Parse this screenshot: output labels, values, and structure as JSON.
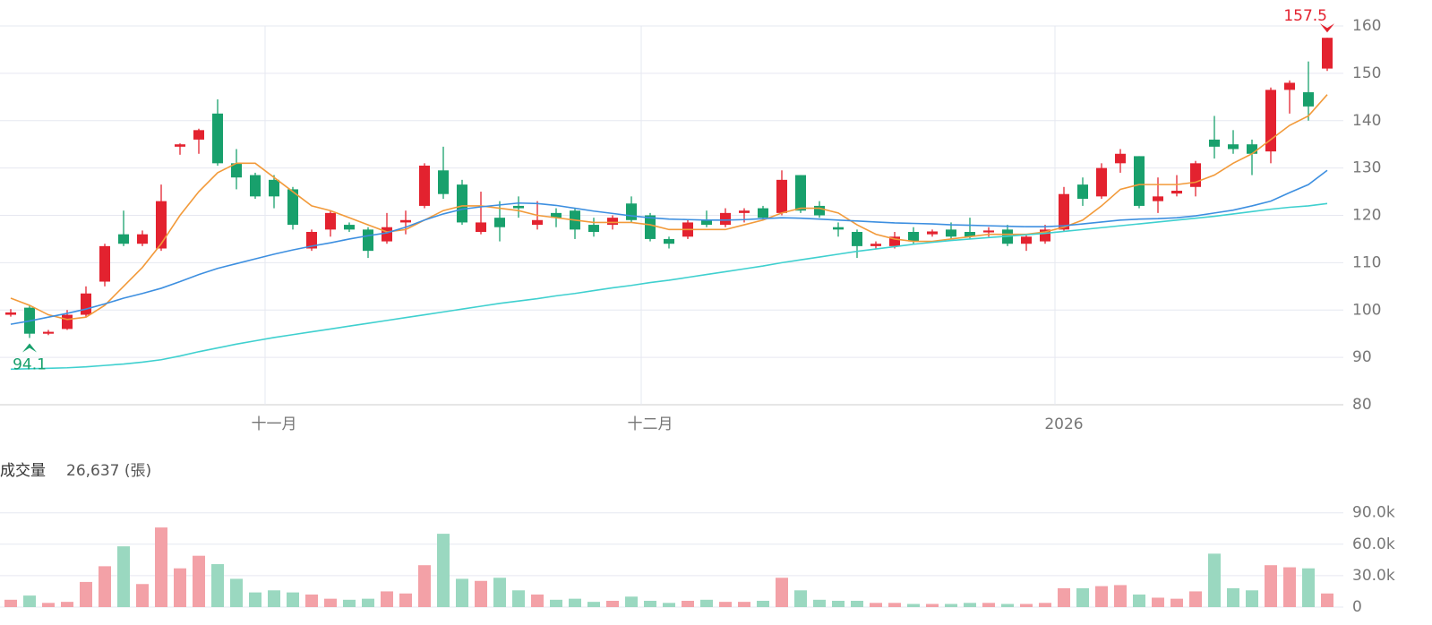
{
  "chart_data": [
    {
      "type": "candlestick",
      "categories": [
        null,
        null,
        null,
        null,
        null,
        null,
        null,
        null,
        null,
        null,
        null,
        null,
        null,
        null,
        "十一月",
        null,
        null,
        null,
        null,
        null,
        null,
        null,
        null,
        null,
        null,
        null,
        null,
        null,
        null,
        null,
        null,
        null,
        null,
        null,
        "十二月",
        null,
        null,
        null,
        null,
        null,
        null,
        null,
        null,
        null,
        null,
        null,
        null,
        null,
        null,
        null,
        null,
        null,
        null,
        null,
        null,
        null,
        "2026",
        null,
        null,
        null,
        null,
        null,
        null,
        null,
        null,
        null,
        null,
        null,
        null,
        null,
        null
      ],
      "open": [
        99,
        100.5,
        95,
        96,
        99,
        106,
        116,
        114,
        113,
        134.5,
        136,
        141.5,
        131,
        128.5,
        127.5,
        125.5,
        113,
        117,
        118,
        117,
        114.5,
        118.5,
        122,
        129.5,
        126.5,
        116.5,
        119.5,
        122,
        118,
        120.5,
        121,
        118,
        118,
        122.5,
        120,
        115,
        115.5,
        119,
        118,
        120.5,
        121.5,
        120.5,
        128.5,
        122,
        117.5,
        116.5,
        113.5,
        113.5,
        116.5,
        116,
        117,
        116.5,
        116.4,
        117,
        114,
        114.5,
        117,
        126.5,
        124,
        131,
        132.5,
        123,
        124.6,
        126,
        136,
        135,
        135,
        133.5,
        146.5,
        146,
        151
      ],
      "high": [
        100.2,
        101,
        95.8,
        100,
        105,
        114,
        121,
        116.8,
        126.5,
        135.2,
        138.3,
        144.5,
        134,
        129,
        128.5,
        126,
        117,
        121,
        118.5,
        117.5,
        120.5,
        121,
        131,
        134.5,
        127.5,
        125,
        123,
        124,
        123,
        121.5,
        121.5,
        119.5,
        120,
        124,
        120.5,
        115.5,
        119,
        121,
        121.5,
        121.5,
        122,
        129.5,
        128.5,
        123,
        118.5,
        117,
        114.5,
        116.5,
        117.5,
        117,
        118.5,
        119.5,
        117.5,
        118,
        116,
        118,
        126,
        128,
        131,
        134,
        132.5,
        128,
        128.5,
        131.5,
        141,
        138,
        136,
        147,
        148.5,
        152.5,
        157.5
      ],
      "low": [
        98.6,
        94.1,
        94.7,
        95.8,
        98.5,
        105,
        113.5,
        113.5,
        112.5,
        132.8,
        133,
        130.5,
        125.5,
        123.5,
        121.5,
        117,
        112.5,
        115.5,
        116.5,
        111,
        114,
        116,
        121.5,
        123.5,
        118,
        116,
        114.5,
        119.5,
        117,
        117.5,
        115,
        115.5,
        117,
        118.5,
        114.5,
        113,
        115,
        117.5,
        117.5,
        118.5,
        119,
        120,
        120.5,
        119.5,
        115.5,
        111,
        113,
        113,
        114,
        115.5,
        115,
        115,
        115.5,
        113.5,
        112.5,
        114,
        116.5,
        122,
        123.5,
        129,
        121.5,
        120.5,
        124,
        124,
        132,
        133,
        128.5,
        131,
        141.5,
        140,
        150.5
      ],
      "close": [
        99.5,
        95,
        95.4,
        99,
        103.5,
        113.5,
        114,
        116,
        123,
        135,
        138,
        131,
        128,
        124,
        124,
        118,
        116.5,
        120.5,
        117,
        112.5,
        117.5,
        119,
        130.5,
        124.5,
        118.5,
        118.5,
        117.5,
        121.5,
        119,
        119.5,
        117,
        116.5,
        119.5,
        119,
        115,
        114,
        118.5,
        118,
        120.5,
        121,
        119.5,
        127.5,
        121,
        120,
        117,
        113.5,
        114,
        115.5,
        114.5,
        116.6,
        115.5,
        115.5,
        116.8,
        114,
        115.5,
        117,
        124.5,
        123.5,
        130,
        133,
        122,
        124,
        125.2,
        131,
        134.5,
        134,
        133,
        146.5,
        148,
        143,
        157.5
      ],
      "up_color": "#e3222f",
      "down_color": "#18a06c",
      "lines": [
        {
          "color": "#f29a3a",
          "values": [
            102.5,
            101,
            99,
            98,
            98.5,
            101,
            105,
            109,
            114,
            120,
            125,
            129,
            131,
            131,
            128,
            125,
            122,
            121,
            119.5,
            118,
            116.5,
            117,
            119,
            121,
            122,
            122,
            121.5,
            121,
            120,
            119.5,
            119,
            118.5,
            118.5,
            118.5,
            118,
            117,
            117,
            117,
            117,
            118,
            119,
            120.5,
            121.5,
            121.5,
            120.5,
            118,
            116,
            115,
            114.5,
            114.5,
            115,
            115.5,
            116,
            116,
            116,
            116.5,
            117.5,
            119,
            122,
            125.5,
            126.5,
            126.5,
            126.5,
            127,
            128.5,
            131,
            133,
            136,
            139,
            141,
            145.5
          ]
        },
        {
          "color": "#3d8fe0",
          "values": [
            97,
            97.7,
            98.5,
            99.3,
            100.2,
            101.3,
            102.5,
            103.5,
            104.6,
            106,
            107.5,
            108.8,
            109.8,
            110.8,
            111.8,
            112.7,
            113.5,
            114.2,
            115,
            115.7,
            116.3,
            117.5,
            119,
            120.3,
            121.3,
            121.8,
            122.2,
            122.6,
            122.5,
            122.1,
            121.5,
            120.9,
            120.4,
            119.9,
            119.5,
            119.2,
            119.1,
            119,
            119,
            119.1,
            119.3,
            119.5,
            119.4,
            119.2,
            119,
            118.8,
            118.6,
            118.4,
            118.3,
            118.2,
            118,
            117.9,
            117.8,
            117.7,
            117.6,
            117.6,
            117.8,
            118.2,
            118.6,
            119,
            119.2,
            119.3,
            119.5,
            119.9,
            120.5,
            121.1,
            122,
            123,
            124.8,
            126.5,
            129.5
          ]
        },
        {
          "color": "#3fd0cf",
          "values": [
            87.5,
            87.6,
            87.7,
            87.8,
            88,
            88.3,
            88.6,
            89,
            89.5,
            90.3,
            91.2,
            92,
            92.8,
            93.5,
            94.2,
            94.8,
            95.4,
            96,
            96.6,
            97.2,
            97.8,
            98.4,
            99,
            99.6,
            100.2,
            100.8,
            101.4,
            101.9,
            102.4,
            103,
            103.5,
            104.1,
            104.7,
            105.2,
            105.8,
            106.3,
            106.9,
            107.5,
            108.1,
            108.7,
            109.3,
            110,
            110.6,
            111.2,
            111.8,
            112.4,
            112.9,
            113.4,
            113.9,
            114.3,
            114.7,
            115,
            115.3,
            115.6,
            115.9,
            116.2,
            116.6,
            117,
            117.4,
            117.8,
            118.2,
            118.6,
            119,
            119.4,
            119.8,
            120.3,
            120.8,
            121.3,
            121.7,
            122,
            122.5
          ]
        }
      ],
      "ylim": [
        80,
        160
      ],
      "yticks": [
        80,
        90,
        100,
        110,
        120,
        130,
        140,
        150,
        160
      ],
      "grid": true
    },
    {
      "type": "bar",
      "title": "成交量",
      "subtitle": "26,637 (張)",
      "values": [
        7000,
        11000,
        4000,
        5000,
        24000,
        39000,
        58000,
        22000,
        76000,
        37000,
        49000,
        41000,
        27000,
        14000,
        16000,
        14000,
        12000,
        8000,
        7000,
        8000,
        15000,
        13000,
        40000,
        70000,
        27000,
        25000,
        28000,
        16000,
        12000,
        7000,
        8000,
        5000,
        6000,
        10000,
        6000,
        4000,
        6000,
        7000,
        5000,
        5000,
        6000,
        28000,
        16000,
        7000,
        6000,
        6000,
        4000,
        4000,
        3000,
        3000,
        3000,
        4000,
        4000,
        3000,
        3000,
        4000,
        18000,
        18000,
        20000,
        21000,
        12000,
        9000,
        8000,
        15000,
        51000,
        18000,
        16000,
        40000,
        38000,
        37000,
        13000
      ],
      "up_color": "#f3a1a7",
      "down_color": "#9ad8c0",
      "ylim": [
        0,
        100000
      ],
      "yticks": [
        0,
        {
          "value": 30000,
          "label": "30.0k"
        },
        {
          "value": 60000,
          "label": "60.0k"
        },
        {
          "value": 90000,
          "label": "90.0k"
        }
      ],
      "grid": true
    }
  ]
}
